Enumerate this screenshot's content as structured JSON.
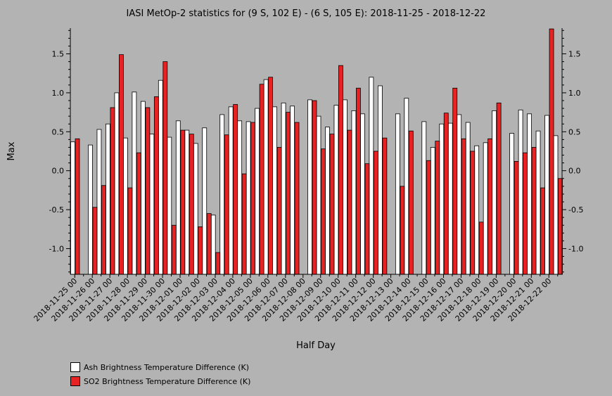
{
  "chart_data": {
    "type": "bar",
    "title": "IASI MetOp-2 statistics for (9 S, 102 E) - (6 S, 105 E): 2018-11-25 - 2018-12-22",
    "xlabel": "Half Day",
    "ylabel": "Max",
    "ylim": [
      -1.33,
      1.83
    ],
    "yticks": [
      -1.0,
      -0.5,
      0.0,
      0.5,
      1.0,
      1.5
    ],
    "ytick_labels": [
      "-1.0",
      "-0.5",
      "0.0",
      "0.5",
      "1.0",
      "1.5"
    ],
    "grid": false,
    "legend_position": "bottom-left",
    "categories": [
      "2018-11-25 00",
      "2018-11-25 12",
      "2018-11-26 00",
      "2018-11-26 12",
      "2018-11-27 00",
      "2018-11-27 12",
      "2018-11-28 00",
      "2018-11-28 12",
      "2018-11-29 00",
      "2018-11-29 12",
      "2018-11-30 00",
      "2018-11-30 12",
      "2018-12-01 00",
      "2018-12-01 12",
      "2018-12-02 00",
      "2018-12-02 12",
      "2018-12-03 00",
      "2018-12-03 12",
      "2018-12-04 00",
      "2018-12-04 12",
      "2018-12-05 00",
      "2018-12-05 12",
      "2018-12-06 00",
      "2018-12-06 12",
      "2018-12-07 00",
      "2018-12-07 12",
      "2018-12-08 00",
      "2018-12-08 12",
      "2018-12-09 00",
      "2018-12-09 12",
      "2018-12-10 00",
      "2018-12-10 12",
      "2018-12-11 00",
      "2018-12-11 12",
      "2018-12-12 00",
      "2018-12-12 12",
      "2018-12-13 00",
      "2018-12-13 12",
      "2018-12-14 00",
      "2018-12-14 12",
      "2018-12-15 00",
      "2018-12-15 12",
      "2018-12-16 00",
      "2018-12-16 12",
      "2018-12-17 00",
      "2018-12-17 12",
      "2018-12-18 00",
      "2018-12-18 12",
      "2018-12-19 00",
      "2018-12-19 12",
      "2018-12-20 00",
      "2018-12-20 12",
      "2018-12-21 00",
      "2018-12-21 12",
      "2018-12-22 00",
      "2018-12-22 12"
    ],
    "xtick_labels": [
      "2018-11-25 00",
      "2018-11-26 00",
      "2018-11-27 00",
      "2018-11-28 00",
      "2018-11-29 00",
      "2018-11-30 00",
      "2018-12-01 00",
      "2018-12-02 00",
      "2018-12-03 00",
      "2018-12-04 00",
      "2018-12-05 00",
      "2018-12-06 00",
      "2018-12-07 00",
      "2018-12-08 00",
      "2018-12-09 00",
      "2018-12-10 00",
      "2018-12-11 00",
      "2018-12-12 00",
      "2018-12-13 00",
      "2018-12-14 00",
      "2018-12-15 00",
      "2018-12-16 00",
      "2018-12-17 00",
      "2018-12-18 00",
      "2018-12-19 00",
      "2018-12-20 00",
      "2018-12-21 00",
      "2018-12-22 00"
    ],
    "series": [
      {
        "name": "Ash Brightness Temperature Difference (K)",
        "color": "#ffffff",
        "values": [
          0.37,
          null,
          0.33,
          0.53,
          0.6,
          1.0,
          0.42,
          1.01,
          0.89,
          0.47,
          1.16,
          0.43,
          0.64,
          0.52,
          0.35,
          0.55,
          -0.57,
          0.72,
          0.82,
          0.64,
          0.63,
          0.8,
          1.17,
          0.82,
          0.87,
          0.83,
          null,
          0.91,
          0.7,
          0.56,
          0.84,
          0.91,
          0.77,
          0.73,
          1.2,
          1.09,
          null,
          0.73,
          0.93,
          null,
          0.63,
          0.3,
          0.6,
          0.61,
          0.72,
          0.62,
          0.32,
          0.36,
          0.77,
          null,
          0.48,
          0.78,
          0.73,
          0.51,
          0.71,
          0.45
        ]
      },
      {
        "name": "SO2 Brightness Temperature Difference (K)",
        "color": "#e82222",
        "values": [
          0.41,
          null,
          -0.47,
          -0.19,
          0.81,
          1.49,
          -0.22,
          0.23,
          0.81,
          0.95,
          1.4,
          -0.7,
          0.52,
          0.47,
          -0.72,
          -0.55,
          -1.05,
          0.46,
          0.85,
          -0.04,
          0.62,
          1.11,
          1.2,
          0.3,
          0.75,
          0.62,
          null,
          0.9,
          0.28,
          0.47,
          1.35,
          0.52,
          1.06,
          0.09,
          0.25,
          0.42,
          null,
          -0.2,
          0.51,
          null,
          0.13,
          0.38,
          0.74,
          1.06,
          0.41,
          0.25,
          -0.66,
          0.41,
          0.87,
          null,
          0.12,
          0.23,
          0.3,
          -0.22,
          1.82,
          -0.1
        ]
      }
    ]
  }
}
